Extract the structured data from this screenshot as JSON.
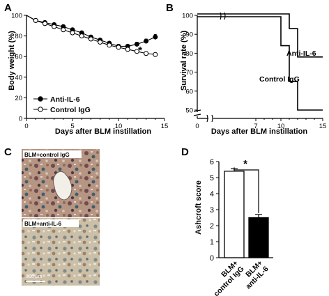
{
  "panels": [
    {
      "letter": "A"
    },
    {
      "letter": "B"
    },
    {
      "letter": "C"
    },
    {
      "letter": "D"
    }
  ],
  "colors": {
    "anti_il6": "#000000",
    "control": "#ffffff",
    "axis": "#000000"
  },
  "chart_data": [
    {
      "panel": "A",
      "type": "line",
      "xlabel": "Days after BLM instillation",
      "ylabel": "Body weight (%)",
      "xlim": [
        0,
        15
      ],
      "ylim": [
        0,
        100
      ],
      "x_ticks": [
        0,
        5,
        10,
        15
      ],
      "y_ticks": [
        0,
        20,
        40,
        60,
        80,
        100
      ],
      "legend_position": "bottom-left",
      "x": [
        1,
        2,
        3,
        4,
        5,
        6,
        7,
        8,
        9,
        10,
        11,
        12,
        13,
        14
      ],
      "series": [
        {
          "name": "Anti-IL-6",
          "marker": "filled-circle",
          "color": "#000000",
          "values": [
            95,
            93,
            91,
            89,
            86,
            83,
            79,
            76,
            73,
            70,
            70,
            72,
            75,
            79
          ],
          "errors": [
            1,
            1,
            1,
            1,
            1,
            1,
            1,
            1,
            1,
            1,
            1.5,
            2,
            2,
            2.5
          ]
        },
        {
          "name": "Control IgG",
          "marker": "open-circle",
          "color": "#ffffff",
          "values": [
            95,
            92,
            89,
            86,
            83,
            80,
            77,
            74,
            71,
            69,
            67,
            65,
            63,
            62
          ],
          "errors": [
            1,
            1,
            1,
            1,
            1,
            1,
            1,
            1,
            1,
            1,
            1,
            1,
            1,
            1.5
          ]
        }
      ],
      "annotations": [
        {
          "text": "*",
          "x": 14
        }
      ]
    },
    {
      "panel": "B",
      "type": "line",
      "style": "step",
      "xlabel": "Days after BLM instillation",
      "ylabel": "Survival rate (%)",
      "xlim": [
        0,
        15
      ],
      "ylim": [
        50,
        100
      ],
      "y_axis_break": true,
      "x_axis_break": true,
      "x_ticks": [
        0,
        7,
        10,
        15
      ],
      "y_ticks": [
        50,
        60,
        70,
        80,
        90,
        100
      ],
      "series": [
        {
          "name": "Anti-IL-6",
          "x": [
            0,
            11,
            11,
            12,
            12,
            15
          ],
          "values": [
            100,
            100,
            93,
            93,
            78,
            78
          ]
        },
        {
          "name": "Control IgG",
          "x": [
            0,
            10,
            10,
            11,
            11,
            12,
            12,
            15
          ],
          "values": [
            100,
            100,
            84,
            84,
            65,
            65,
            50,
            50
          ]
        }
      ]
    },
    {
      "panel": "D",
      "type": "bar",
      "ylabel": "Ashcroft score",
      "ylim": [
        0,
        6
      ],
      "y_ticks": [
        0,
        1,
        2,
        3,
        4,
        5,
        6
      ],
      "categories": [
        "BLM+\ncontrol IgG",
        "BLM+\nanti-IL-6"
      ],
      "values": [
        5.4,
        2.5
      ],
      "errors": [
        0.15,
        0.2
      ],
      "bar_colors": [
        "#ffffff",
        "#000000"
      ],
      "significance": "*"
    }
  ],
  "micrographs": {
    "top_label": "BLM+control IgG",
    "bottom_label": "BLM+anti-IL-6",
    "scale_bar": "100 μm"
  }
}
